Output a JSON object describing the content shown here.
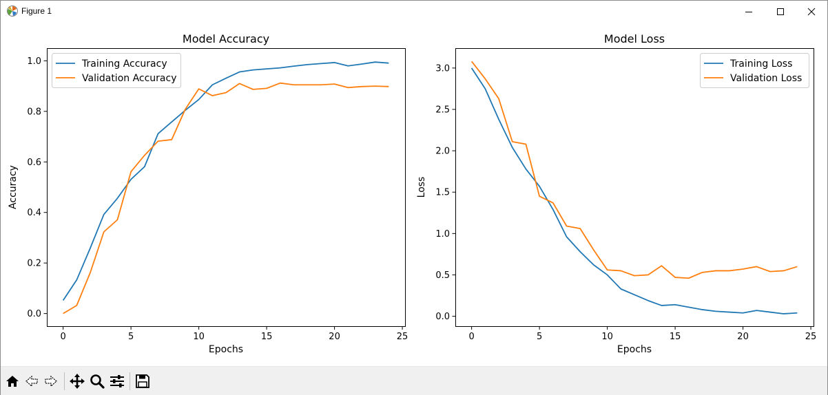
{
  "window": {
    "title": "Figure 1",
    "icons": [
      "matplotlib-logo-icon",
      "minimize-icon",
      "maximize-icon",
      "close-icon"
    ]
  },
  "toolbar": {
    "icons": [
      "home-icon",
      "back-arrow-icon",
      "forward-arrow-icon",
      "pan-move-icon",
      "zoom-magnifier-icon",
      "configure-subplots-icon",
      "save-floppy-icon"
    ]
  },
  "colors": {
    "training": "#1f77b4",
    "validation": "#ff7f0e"
  },
  "chart_data": [
    {
      "type": "line",
      "title": "Model Accuracy",
      "xlabel": "Epochs",
      "ylabel": "Accuracy",
      "xlim": [
        -1.2,
        25.2
      ],
      "ylim": [
        -0.05,
        1.05
      ],
      "xticks": [
        0,
        5,
        10,
        15,
        20,
        25
      ],
      "xtick_labels": [
        "0",
        "5",
        "10",
        "15",
        "20",
        "25"
      ],
      "yticks": [
        0.0,
        0.2,
        0.4,
        0.6,
        0.8,
        1.0
      ],
      "ytick_labels": [
        "0.0",
        "0.2",
        "0.4",
        "0.6",
        "0.8",
        "1.0"
      ],
      "legend_position": "upper-left",
      "x": [
        0,
        1,
        2,
        3,
        4,
        5,
        6,
        7,
        8,
        9,
        10,
        11,
        12,
        13,
        14,
        15,
        16,
        17,
        18,
        19,
        20,
        21,
        22,
        23,
        24
      ],
      "series": [
        {
          "name": "Training Accuracy",
          "color": "#1f77b4",
          "values": [
            0.052,
            0.133,
            0.259,
            0.392,
            0.456,
            0.531,
            0.581,
            0.712,
            0.758,
            0.804,
            0.847,
            0.905,
            0.931,
            0.956,
            0.964,
            0.968,
            0.972,
            0.979,
            0.985,
            0.989,
            0.993,
            0.98,
            0.987,
            0.995,
            0.991
          ]
        },
        {
          "name": "Validation Accuracy",
          "color": "#ff7f0e",
          "values": [
            0.0,
            0.032,
            0.162,
            0.323,
            0.371,
            0.561,
            0.626,
            0.682,
            0.688,
            0.808,
            0.889,
            0.862,
            0.874,
            0.91,
            0.887,
            0.891,
            0.912,
            0.905,
            0.905,
            0.905,
            0.908,
            0.894,
            0.898,
            0.9,
            0.898
          ]
        }
      ]
    },
    {
      "type": "line",
      "title": "Model Loss",
      "xlabel": "Epochs",
      "ylabel": "Loss",
      "xlim": [
        -1.2,
        25.2
      ],
      "ylim": [
        -0.12,
        3.24
      ],
      "xticks": [
        0,
        5,
        10,
        15,
        20,
        25
      ],
      "xtick_labels": [
        "0",
        "5",
        "10",
        "15",
        "20",
        "25"
      ],
      "yticks": [
        0.0,
        0.5,
        1.0,
        1.5,
        2.0,
        2.5,
        3.0
      ],
      "ytick_labels": [
        "0.0",
        "0.5",
        "1.0",
        "1.5",
        "2.0",
        "2.5",
        "3.0"
      ],
      "legend_position": "upper-right",
      "x": [
        0,
        1,
        2,
        3,
        4,
        5,
        6,
        7,
        8,
        9,
        10,
        11,
        12,
        13,
        14,
        15,
        16,
        17,
        18,
        19,
        20,
        21,
        22,
        23,
        24
      ],
      "series": [
        {
          "name": "Training Loss",
          "color": "#1f77b4",
          "values": [
            3.0,
            2.75,
            2.38,
            2.04,
            1.78,
            1.57,
            1.29,
            0.96,
            0.78,
            0.62,
            0.5,
            0.33,
            0.26,
            0.19,
            0.13,
            0.14,
            0.11,
            0.08,
            0.06,
            0.05,
            0.04,
            0.07,
            0.05,
            0.03,
            0.04
          ]
        },
        {
          "name": "Validation Loss",
          "color": "#ff7f0e",
          "values": [
            3.08,
            2.87,
            2.63,
            2.11,
            2.08,
            1.45,
            1.37,
            1.09,
            1.06,
            0.8,
            0.56,
            0.55,
            0.49,
            0.5,
            0.61,
            0.47,
            0.46,
            0.53,
            0.55,
            0.55,
            0.57,
            0.6,
            0.54,
            0.55,
            0.6
          ]
        }
      ]
    }
  ]
}
